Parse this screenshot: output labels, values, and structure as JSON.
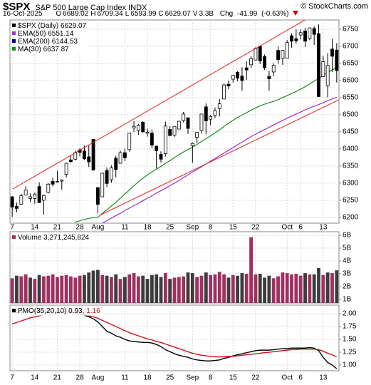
{
  "header": {
    "symbol": "$SPX",
    "name": "S&P 500 Large Cap Index",
    "exchange": "INDX",
    "copyright": "© StockCharts.com",
    "date": "16-Oct-2025",
    "quote": [
      {
        "label": "O",
        "value": 6689.02
      },
      {
        "label": "H",
        "value": 6709.34
      },
      {
        "label": "L",
        "value": 6593.99
      },
      {
        "label": "C",
        "value": 6629.07
      },
      {
        "label": "V",
        "value": "3.3B"
      }
    ],
    "change_label": "Chg",
    "change": -41.99,
    "change_pct": "(-0.63%)"
  },
  "chart_data": [
    {
      "type": "candlestick",
      "title": "$SPX (Daily)",
      "categories": [
        "7",
        null,
        null,
        null,
        null,
        "14",
        null,
        null,
        null,
        null,
        "21",
        null,
        null,
        null,
        null,
        "28",
        null,
        null,
        null,
        "Aug",
        null,
        null,
        null,
        null,
        null,
        "11",
        null,
        null,
        null,
        null,
        "18",
        null,
        null,
        null,
        null,
        "25",
        null,
        null,
        null,
        null,
        "Sep",
        null,
        null,
        null,
        "8",
        null,
        null,
        null,
        null,
        "15",
        null,
        null,
        null,
        null,
        "22",
        null,
        null,
        null,
        null,
        null,
        null,
        "Oct",
        null,
        null,
        "6",
        null,
        null,
        null,
        null,
        "13",
        null,
        null,
        null
      ],
      "open": [
        6260,
        6232,
        6238,
        6265,
        6255,
        6255,
        6290,
        6250,
        6273,
        6305,
        6304,
        6306,
        6326,
        6368,
        6370,
        6397,
        6394,
        6377,
        6428,
        6287,
        6260,
        6337,
        6310,
        6373,
        6358,
        6389,
        6398,
        6461,
        6454,
        6478,
        6446,
        6446,
        6408,
        6384,
        6386,
        6457,
        6440,
        6458,
        6483,
        6491,
        6410,
        6434,
        6454,
        6523,
        6487,
        6498,
        6518,
        6546,
        6589,
        6604,
        6624,
        6613,
        6637,
        6646,
        6660,
        6700,
        6670,
        6612,
        6625,
        6688,
        6664,
        6665,
        6731,
        6722,
        6733,
        6745,
        6723,
        6752,
        6737,
        6611,
        6585,
        6692,
        6689.02
      ],
      "high": [
        6262,
        6243,
        6269,
        6291,
        6270,
        6272,
        6302,
        6267,
        6300,
        6316,
        6336,
        6311,
        6360,
        6381,
        6395,
        6402,
        6410,
        6410,
        6428,
        6288,
        6330,
        6346,
        6352,
        6380,
        6395,
        6401,
        6446,
        6481,
        6473,
        6481,
        6459,
        6457,
        6410,
        6393,
        6480,
        6467,
        6466,
        6482,
        6508,
        6491,
        6419,
        6450,
        6502,
        6533,
        6499,
        6521,
        6546,
        6592,
        6600,
        6617,
        6627,
        6639,
        6656,
        6671,
        6697,
        6702,
        6676,
        6629,
        6650,
        6700,
        6689,
        6718,
        6738,
        6750,
        6749,
        6754,
        6754,
        6758,
        6764,
        6672,
        6680,
        6722,
        6709.34
      ],
      "low": [
        6201,
        6215,
        6237,
        6265,
        6245,
        6240,
        6243,
        6208,
        6270,
        6290,
        6303,
        6281,
        6317,
        6360,
        6366,
        6378,
        6368,
        6347,
        6336,
        6212,
        6260,
        6289,
        6301,
        6317,
        6357,
        6364,
        6392,
        6450,
        6441,
        6448,
        6436,
        6402,
        6343,
        6360,
        6378,
        6438,
        6435,
        6457,
        6478,
        6444,
        6360,
        6417,
        6445,
        6443,
        6470,
        6490,
        6495,
        6545,
        6575,
        6594,
        6598,
        6570,
        6602,
        6636,
        6660,
        6648,
        6631,
        6570,
        6612,
        6649,
        6646,
        6664,
        6696,
        6708,
        6720,
        6698,
        6718,
        6704,
        6552,
        6611,
        6551,
        6625,
        6593.99
      ],
      "close": [
        6230,
        6226,
        6263,
        6280,
        6260,
        6268,
        6243,
        6264,
        6297,
        6297,
        6305,
        6309,
        6358,
        6363,
        6389,
        6390,
        6371,
        6362,
        6339,
        6238,
        6329,
        6299,
        6345,
        6340,
        6389,
        6374,
        6446,
        6466,
        6469,
        6450,
        6449,
        6411,
        6395,
        6370,
        6467,
        6439,
        6466,
        6481,
        6502,
        6460,
        6416,
        6448,
        6502,
        6482,
        6495,
        6512,
        6532,
        6587,
        6584,
        6615,
        6607,
        6600,
        6631,
        6664,
        6694,
        6657,
        6638,
        6605,
        6644,
        6661,
        6688,
        6711,
        6715,
        6716,
        6740,
        6715,
        6754,
        6735,
        6553,
        6655,
        6644,
        6671,
        6629.07
      ],
      "up_color": "#ffffff",
      "down_color": "#000000",
      "ylim": [
        6183,
        6777
      ],
      "yticks": [
        6200,
        6250,
        6300,
        6350,
        6400,
        6450,
        6500,
        6550,
        6600,
        6650,
        6700,
        6750
      ],
      "grid": true,
      "overlays": [
        {
          "name": "EMA(50)",
          "color": "#9b30d0",
          "values": [
            null,
            null,
            null,
            null,
            null,
            null,
            null,
            null,
            null,
            null,
            null,
            null,
            null,
            null,
            null,
            null,
            null,
            null,
            null,
            null,
            6183,
            6190,
            6198,
            6205,
            6212,
            6220,
            6227,
            6234,
            6241,
            6249,
            6256,
            6263,
            6271,
            6278,
            6285,
            6293,
            6300,
            6308,
            6316,
            6324,
            6332,
            6340,
            6348,
            6356,
            6364,
            6372,
            6380,
            6388,
            6396,
            6404,
            6412,
            6420,
            6428,
            6436,
            6443,
            6450,
            6457,
            6463,
            6470,
            6477,
            6483,
            6490,
            6496,
            6502,
            6508,
            6514,
            6520,
            6525,
            6530,
            6535,
            6541,
            6546,
            6551.14
          ]
        },
        {
          "name": "EMA(200)",
          "color": "#000080",
          "last": 6144.53
        },
        {
          "name": "MA(30)",
          "color": "#1f8a1f",
          "values": [
            null,
            null,
            null,
            null,
            null,
            null,
            null,
            null,
            null,
            null,
            null,
            null,
            null,
            null,
            6186,
            6190,
            6194,
            6197,
            6199,
            6200,
            6212,
            6222,
            6233,
            6244,
            6256,
            6268,
            6280,
            6292,
            6304,
            6314,
            6324,
            6333,
            6341,
            6349,
            6358,
            6366,
            6375,
            6383,
            6391,
            6398,
            6405,
            6413,
            6422,
            6430,
            6438,
            6447,
            6456,
            6466,
            6475,
            6484,
            6492,
            6499,
            6506,
            6513,
            6520,
            6526,
            6531,
            6535,
            6539,
            6544,
            6550,
            6556,
            6562,
            6568,
            6575,
            6582,
            6590,
            6598,
            6606,
            6615,
            6623,
            6631,
            6637.87
          ]
        }
      ]
    },
    {
      "type": "bar",
      "title": "Volume",
      "total_label": "3,271,245,824",
      "values": [
        2.65,
        2.85,
        2.8,
        2.95,
        2.7,
        2.6,
        2.9,
        2.8,
        2.85,
        2.95,
        2.75,
        2.85,
        2.9,
        2.8,
        2.7,
        2.85,
        2.9,
        3.1,
        3.25,
        3.3,
        2.9,
        2.85,
        2.75,
        2.95,
        2.6,
        2.75,
        2.95,
        3.05,
        2.8,
        2.85,
        2.6,
        2.9,
        2.95,
        2.75,
        3.05,
        2.6,
        2.7,
        2.75,
        2.8,
        3.1,
        3.05,
        2.75,
        2.85,
        3.1,
        2.9,
        2.95,
        3.15,
        2.95,
        2.7,
        2.9,
        2.85,
        3.05,
        3.0,
        5.85,
        2.95,
        3.0,
        2.7,
        2.85,
        2.65,
        2.8,
        3.1,
        3.05,
        2.95,
        3.0,
        2.85,
        3.05,
        2.95,
        2.95,
        3.45,
        2.9,
        3.1,
        3.05,
        3.27
      ],
      "up_color": "#a03060",
      "down_color": "#3c3c3c",
      "ylim": [
        0.72,
        6.28
      ],
      "yticks": [
        {
          "value": 1,
          "label": "1B"
        },
        {
          "value": 2,
          "label": "2B"
        },
        {
          "value": 3,
          "label": "3B"
        },
        {
          "value": 4,
          "label": "4B"
        },
        {
          "value": 5,
          "label": "5B"
        },
        {
          "value": 6,
          "label": "6B"
        }
      ],
      "grid": true
    },
    {
      "type": "line",
      "title": "PMO(35,20,10)",
      "legend_separator": ",",
      "series": [
        {
          "color": "#000000",
          "values": [
            2.02,
            2.02,
            2.03,
            2.04,
            2.04,
            2.05,
            2.05,
            2.05,
            2.05,
            2.05,
            2.05,
            2.04,
            2.04,
            2.03,
            2.02,
            2.0,
            1.97,
            1.94,
            1.9,
            1.84,
            1.75,
            1.66,
            1.62,
            1.57,
            1.54,
            1.5,
            1.47,
            1.46,
            1.45,
            1.44,
            1.44,
            1.43,
            1.4,
            1.36,
            1.3,
            1.26,
            1.22,
            1.19,
            1.17,
            1.15,
            1.12,
            1.1,
            1.09,
            1.08,
            1.08,
            1.09,
            1.1,
            1.13,
            1.15,
            1.18,
            1.2,
            1.22,
            1.24,
            1.26,
            1.28,
            1.29,
            1.29,
            1.29,
            1.3,
            1.31,
            1.32,
            1.32,
            1.33,
            1.33,
            1.33,
            1.33,
            1.34,
            1.33,
            1.28,
            1.15,
            1.05,
            1.0,
            0.93
          ]
        },
        {
          "color": "#cc1020",
          "values": [
            1.8,
            1.83,
            1.86,
            1.89,
            1.92,
            1.94,
            1.96,
            1.98,
            1.99,
            2.0,
            2.01,
            2.01,
            2.01,
            2.01,
            2.0,
            1.99,
            1.98,
            1.96,
            1.94,
            1.91,
            1.87,
            1.83,
            1.79,
            1.75,
            1.71,
            1.67,
            1.63,
            1.6,
            1.57,
            1.54,
            1.51,
            1.49,
            1.46,
            1.44,
            1.41,
            1.38,
            1.35,
            1.32,
            1.29,
            1.26,
            1.23,
            1.21,
            1.19,
            1.18,
            1.17,
            1.16,
            1.16,
            1.16,
            1.17,
            1.17,
            1.18,
            1.19,
            1.2,
            1.21,
            1.22,
            1.23,
            1.24,
            1.25,
            1.26,
            1.27,
            1.28,
            1.29,
            1.3,
            1.3,
            1.31,
            1.31,
            1.31,
            1.31,
            1.3,
            1.27,
            1.23,
            1.2,
            1.16
          ]
        }
      ],
      "ylim": [
        0.889,
        2.167
      ],
      "yticks": [
        {
          "value": 1,
          "label": "1.00"
        },
        {
          "value": 1.25,
          "label": "1.25"
        },
        {
          "value": 1.5,
          "label": "1.50"
        },
        {
          "value": 1.75,
          "label": "1.75"
        },
        {
          "value": 2,
          "label": "2.00"
        }
      ],
      "grid": true
    }
  ]
}
